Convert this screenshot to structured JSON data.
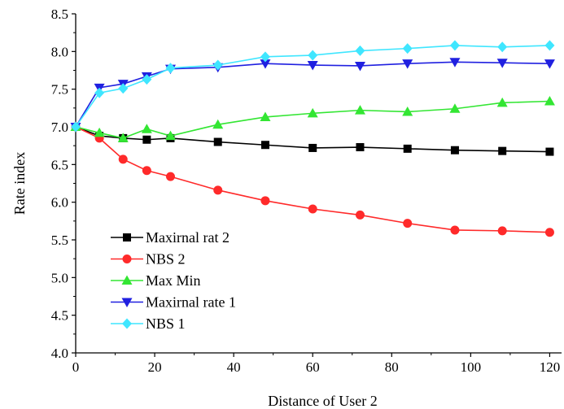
{
  "chart_data": {
    "type": "line",
    "title": "",
    "xlabel": "Distance of User 2",
    "ylabel": "Rate index",
    "xlim": [
      0,
      123
    ],
    "ylim": [
      4.0,
      8.5
    ],
    "xticks": [
      0,
      20,
      40,
      60,
      80,
      100,
      120
    ],
    "yticks": [
      4.0,
      4.5,
      5.0,
      5.5,
      6.0,
      6.5,
      7.0,
      7.5,
      8.0,
      8.5
    ],
    "grid": false,
    "legend_position": "bottom-left",
    "series": [
      {
        "name": "Maxirnal rat 2",
        "color": "#000000",
        "marker": "square",
        "x": [
          0,
          6,
          12,
          18,
          24,
          36,
          48,
          60,
          72,
          84,
          96,
          108,
          120
        ],
        "y": [
          7.0,
          6.88,
          6.85,
          6.83,
          6.85,
          6.8,
          6.76,
          6.72,
          6.73,
          6.71,
          6.69,
          6.68,
          6.67
        ]
      },
      {
        "name": "NBS 2",
        "color": "#ff2a2a",
        "marker": "circle",
        "x": [
          0,
          6,
          12,
          18,
          24,
          36,
          48,
          60,
          72,
          84,
          96,
          108,
          120
        ],
        "y": [
          7.0,
          6.85,
          6.57,
          6.42,
          6.34,
          6.16,
          6.02,
          5.91,
          5.83,
          5.72,
          5.63,
          5.62,
          5.6
        ]
      },
      {
        "name": "Max Min",
        "color": "#33e633",
        "marker": "triangle-up",
        "x": [
          0,
          6,
          12,
          18,
          24,
          36,
          48,
          60,
          72,
          84,
          96,
          108,
          120
        ],
        "y": [
          7.0,
          6.92,
          6.85,
          6.97,
          6.88,
          7.03,
          7.13,
          7.18,
          7.22,
          7.2,
          7.24,
          7.32,
          7.34
        ]
      },
      {
        "name": "Maxirnal rate 1",
        "color": "#2020e0",
        "marker": "triangle-down",
        "x": [
          0,
          6,
          12,
          18,
          24,
          36,
          48,
          60,
          72,
          84,
          96,
          108,
          120
        ],
        "y": [
          7.0,
          7.52,
          7.57,
          7.67,
          7.77,
          7.79,
          7.84,
          7.82,
          7.81,
          7.84,
          7.86,
          7.85,
          7.84
        ]
      },
      {
        "name": "NBS 1",
        "color": "#3fe6ff",
        "marker": "diamond",
        "x": [
          0,
          6,
          12,
          18,
          24,
          36,
          48,
          60,
          72,
          84,
          96,
          108,
          120
        ],
        "y": [
          7.0,
          7.45,
          7.51,
          7.63,
          7.78,
          7.82,
          7.93,
          7.95,
          8.01,
          8.04,
          8.08,
          8.06,
          8.08
        ]
      }
    ]
  }
}
